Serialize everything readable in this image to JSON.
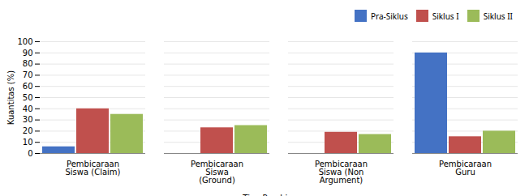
{
  "chart_data": {
    "type": "bar",
    "xlabel": "Tipe Pembicaraan",
    "ylabel": "Kuantitas (%)",
    "categories": [
      "Pembicaraan\nSiswa (Claim)",
      "Pembicaraan\nSiswa\n(Ground)",
      "Pembicaraan\nSiswa (Non\nArgument)",
      "Pembicaraan\nGuru"
    ],
    "series": [
      {
        "name": "Pra-Siklus",
        "color": "#4472C4",
        "values": [
          6,
          0,
          0,
          90
        ]
      },
      {
        "name": "Siklus I",
        "color": "#C0504D",
        "values": [
          40,
          23,
          19,
          15
        ]
      },
      {
        "name": "Siklus II",
        "color": "#9BBB59",
        "values": [
          35,
          25,
          17,
          20
        ]
      }
    ],
    "ylim": [
      0,
      100
    ],
    "yticks": [
      0,
      10,
      20,
      30,
      40,
      50,
      60,
      70,
      80,
      90,
      100
    ],
    "grid": true,
    "legend": "upper right"
  }
}
